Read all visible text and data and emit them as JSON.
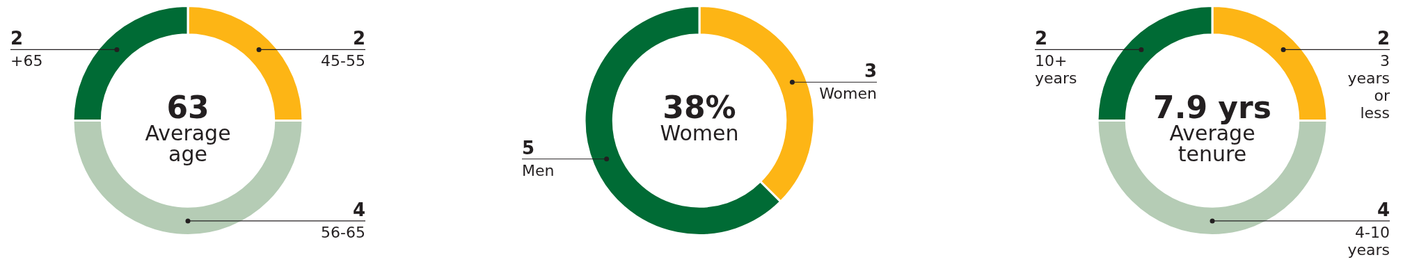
{
  "chart_data": [
    {
      "type": "donut",
      "title": "63",
      "subtitle": "Average age",
      "categories": [
        "45-55",
        "56-65",
        "+65"
      ],
      "values": [
        2,
        4,
        2
      ],
      "colors": [
        "#fdb515",
        "#b5ccb5",
        "#006b35"
      ],
      "data_labels": true,
      "legend": false
    },
    {
      "type": "donut",
      "title": "38%",
      "subtitle": "Women",
      "categories": [
        "Women",
        "Men"
      ],
      "values": [
        3,
        5
      ],
      "colors": [
        "#fdb515",
        "#006b35"
      ],
      "data_labels": true,
      "legend": false
    },
    {
      "type": "donut",
      "title": "7.9 yrs",
      "subtitle": "Average tenure",
      "categories": [
        "3 years or less",
        "4-10 years",
        "10+ years"
      ],
      "values": [
        2,
        4,
        2
      ],
      "colors": [
        "#fdb515",
        "#b5ccb5",
        "#006b35"
      ],
      "data_labels": true,
      "legend": false
    }
  ]
}
